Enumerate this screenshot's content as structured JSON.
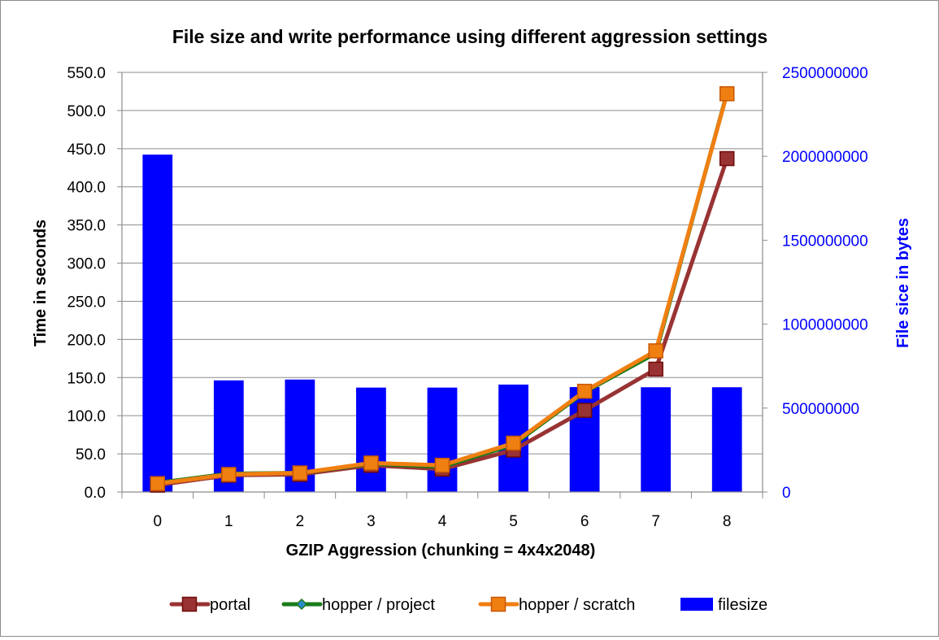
{
  "chart_data": {
    "type": "bar+line",
    "title": "File size and write performance using different aggression settings",
    "xlabel": "GZIP Aggression (chunking = 4x4x2048)",
    "ylabel": "Time in seconds",
    "y2label": "File sice in bytes",
    "categories": [
      "0",
      "1",
      "2",
      "3",
      "4",
      "5",
      "6",
      "7",
      "8"
    ],
    "ylim": [
      0,
      550
    ],
    "y_ticks": [
      "0.0",
      "50.0",
      "100.0",
      "150.0",
      "200.0",
      "250.0",
      "300.0",
      "350.0",
      "400.0",
      "450.0",
      "500.0",
      "550.0"
    ],
    "y2lim": [
      0,
      2500000000
    ],
    "y2_ticks": [
      "0",
      "500000000",
      "1000000000",
      "1500000000",
      "2000000000",
      "2500000000"
    ],
    "bar_series": {
      "name": "filesize",
      "axis": "right",
      "color": "#0000ff",
      "values": [
        2010000000,
        665000000,
        670000000,
        622000000,
        622000000,
        640000000,
        625000000,
        624000000,
        624000000
      ]
    },
    "line_series": [
      {
        "name": "portal",
        "color": "#993333",
        "marker": "square",
        "values": [
          9,
          22,
          23,
          35,
          30,
          55,
          107,
          161,
          437
        ]
      },
      {
        "name": "hopper / project",
        "color": "#1a7a1a",
        "marker": "diamond",
        "values": [
          12,
          24,
          25,
          37,
          33,
          62,
          131,
          182,
          523
        ]
      },
      {
        "name": "hopper / scratch",
        "color": "#f07f12",
        "marker": "square",
        "values": [
          11,
          23,
          25,
          38,
          35,
          64,
          132,
          185,
          522
        ]
      }
    ],
    "legend_position": "bottom",
    "grid": true
  }
}
